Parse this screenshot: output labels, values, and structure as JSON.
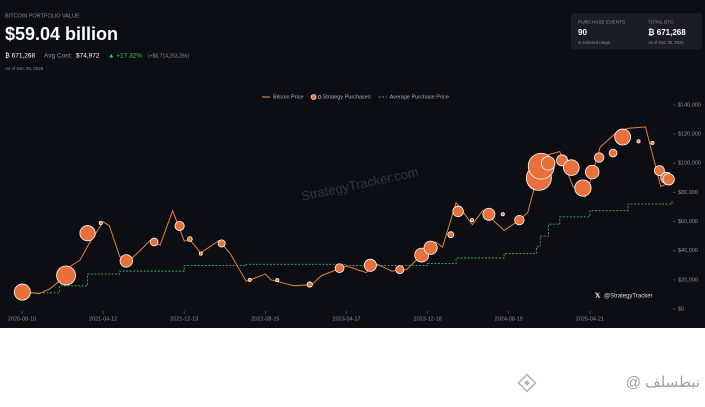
{
  "header": {
    "label": "BITCOIN PORTFOLIO VALUE",
    "value": "$59.04 billion",
    "btc": "₿ 671,268",
    "avg_label": "Avg Cost:",
    "avg_value": "$74,972",
    "change": "▲ +17.32%",
    "change_abs": "(+$8,714,253,266)",
    "as_of": "As of Dec 25, 2025"
  },
  "stats": [
    {
      "label": "PURCHASE EVENTS",
      "value": "90",
      "note": "in selected range"
    },
    {
      "label": "TOTAL BTC",
      "value": "₿ 671,268",
      "note": "As of Dec 25, 2025"
    }
  ],
  "chart_data": {
    "type": "line",
    "xlim": [
      "2020-08-10",
      "2025-12-25"
    ],
    "xticks": [
      "2020-08-10",
      "2021-04-12",
      "2021-12-13",
      "2022-08-15",
      "2023-04-17",
      "2023-12-18",
      "2024-08-19",
      "2025-04-21"
    ],
    "ylim": [
      0,
      140000
    ],
    "yticks": [
      {
        "value": 0,
        "label": "$0"
      },
      {
        "value": 20000,
        "label": "$20,000"
      },
      {
        "value": 40000,
        "label": "$40,000"
      },
      {
        "value": 60000,
        "label": "$60,000"
      },
      {
        "value": 80000,
        "label": "$80,000"
      },
      {
        "value": 100000,
        "label": "$100,000"
      },
      {
        "value": 120000,
        "label": "$120,000"
      },
      {
        "value": 140000,
        "label": "$140,000"
      }
    ],
    "watermark": "StrategyTracker.com",
    "handle": "@StrategyTracker",
    "series": [
      {
        "name": "Bitcoin Price",
        "color": "#e0823f",
        "kind": "line",
        "x": [
          "2020-08-10",
          "2020-10-01",
          "2020-11-01",
          "2020-12-01",
          "2021-01-01",
          "2021-02-01",
          "2021-03-01",
          "2021-04-12",
          "2021-05-01",
          "2021-06-01",
          "2021-07-01",
          "2021-08-01",
          "2021-09-01",
          "2021-10-01",
          "2021-11-08",
          "2021-12-13",
          "2022-01-01",
          "2022-02-01",
          "2022-03-28",
          "2022-05-01",
          "2022-06-18",
          "2022-08-15",
          "2022-09-01",
          "2022-11-09",
          "2023-01-01",
          "2023-02-01",
          "2023-04-17",
          "2023-06-15",
          "2023-07-15",
          "2023-09-01",
          "2023-10-15",
          "2023-12-18",
          "2024-01-11",
          "2024-02-01",
          "2024-03-13",
          "2024-05-01",
          "2024-06-01",
          "2024-08-05",
          "2024-09-01",
          "2024-10-15",
          "2024-11-22",
          "2024-12-17",
          "2025-01-20",
          "2025-03-01",
          "2025-04-07",
          "2025-04-21",
          "2025-05-22",
          "2025-07-14",
          "2025-08-14",
          "2025-10-06",
          "2025-11-21",
          "2025-12-25"
        ],
        "values": [
          11800,
          10600,
          13700,
          19000,
          29000,
          33500,
          45000,
          60000,
          57000,
          36000,
          33500,
          40000,
          47000,
          43800,
          67500,
          46700,
          47000,
          38500,
          47000,
          38000,
          19000,
          24000,
          20000,
          16000,
          16600,
          23000,
          29500,
          25000,
          31000,
          26000,
          27000,
          41000,
          46000,
          42500,
          73000,
          58000,
          67500,
          54000,
          58000,
          66000,
          98000,
          106000,
          108000,
          84000,
          77000,
          87000,
          111000,
          122000,
          124000,
          125000,
          84000,
          87500
        ]
      },
      {
        "name": "Strategy Purchases",
        "color": "#e8703a",
        "kind": "bubble",
        "x": [
          "2020-08-11",
          "2020-12-21",
          "2021-02-24",
          "2021-04-05",
          "2021-06-21",
          "2021-09-13",
          "2021-11-29",
          "2021-12-30",
          "2022-02-01",
          "2022-04-05",
          "2022-06-29",
          "2022-09-20",
          "2022-12-27",
          "2023-03-27",
          "2023-06-28",
          "2023-09-25",
          "2023-11-30",
          "2023-12-27",
          "2024-02-26",
          "2024-03-19",
          "2024-04-30",
          "2024-06-20",
          "2024-08-01",
          "2024-09-20",
          "2024-11-11",
          "2024-11-18",
          "2024-11-25",
          "2024-12-16",
          "2025-01-27",
          "2025-02-24",
          "2025-03-31",
          "2025-04-28",
          "2025-05-19",
          "2025-06-30",
          "2025-07-29",
          "2025-09-15",
          "2025-10-27",
          "2025-11-17",
          "2025-12-08",
          "2025-12-15"
        ],
        "values": [
          11600,
          23000,
          52000,
          59000,
          33000,
          46000,
          57000,
          48000,
          38000,
          45000,
          20000,
          19800,
          16800,
          28000,
          30000,
          27000,
          37000,
          42000,
          51000,
          67000,
          61000,
          65000,
          65000,
          61000,
          88000,
          90000,
          98000,
          100000,
          102000,
          97000,
          83000,
          94000,
          104000,
          107000,
          118000,
          115000,
          114000,
          95000,
          90000,
          89000
        ],
        "sizes": [
          21454,
          29646,
          19452,
          253,
          13005,
          5050,
          7002,
          1914,
          660,
          4167,
          480,
          301,
          2395,
          6455,
          12333,
          5445,
          16130,
          14620,
          3000,
          9245,
          122,
          11931,
          169,
          7420,
          27200,
          51780,
          55500,
          15350,
          10107,
          20356,
          22048,
          15355,
          7390,
          4980,
          21021,
          525,
          390,
          8178,
          10624,
          10645
        ]
      },
      {
        "name": "Average Purchase Price",
        "color": "#3fae5a",
        "kind": "step",
        "x": [
          "2020-08-10",
          "2020-12-01",
          "2021-02-24",
          "2021-06-01",
          "2021-12-13",
          "2022-06-18",
          "2023-04-17",
          "2023-12-18",
          "2024-03-13",
          "2024-08-05",
          "2024-11-11",
          "2024-11-22",
          "2024-12-17",
          "2025-01-20",
          "2025-04-21",
          "2025-08-14",
          "2025-12-25"
        ],
        "values": [
          11100,
          15900,
          24000,
          26000,
          29800,
          30700,
          29800,
          31300,
          35000,
          38000,
          42700,
          50000,
          58200,
          63300,
          67500,
          72000,
          74972
        ]
      }
    ]
  },
  "footer_watermark": "@ نبطسلف"
}
